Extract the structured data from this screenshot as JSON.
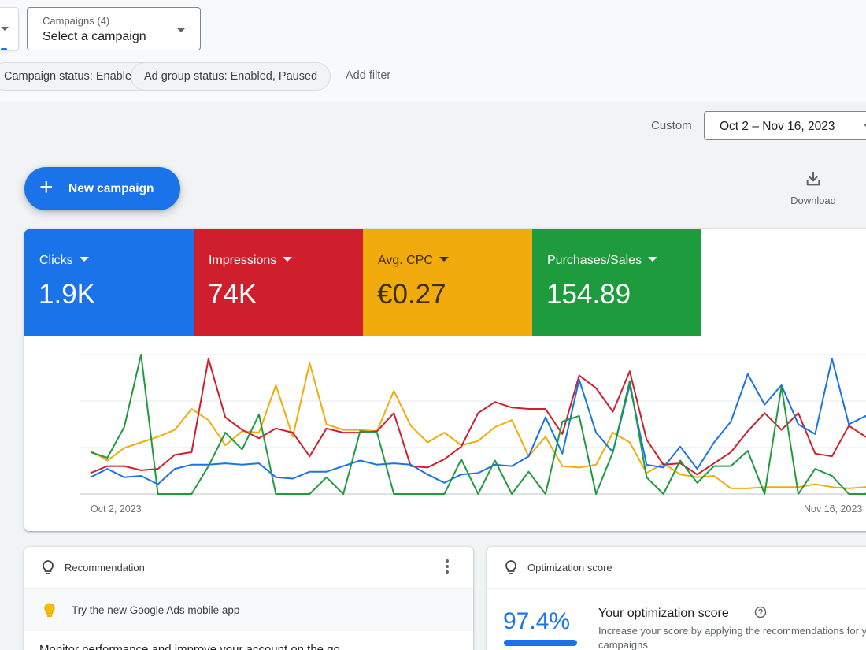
{
  "filters": {
    "campaign_select": {
      "label": "Campaigns (4)",
      "value": "Select a campaign"
    },
    "chips": [
      {
        "label": "Campaign status: Enabled, Paused"
      },
      {
        "label": "Ad group status: Enabled, Paused"
      }
    ],
    "add_filter": "Add filter"
  },
  "date_range": {
    "label": "Custom",
    "value": "Oct 2 – Nov 16, 2023"
  },
  "actions": {
    "new_campaign": "New campaign",
    "download": "Download"
  },
  "metrics": [
    {
      "label": "Clicks",
      "value": "1.9K",
      "color": "#1a73e8"
    },
    {
      "label": "Impressions",
      "value": "74K",
      "color": "#d01f2c"
    },
    {
      "label": "Avg. CPC",
      "value": "€0.27",
      "color": "#f2ab0c"
    },
    {
      "label": "Purchases/Sales",
      "value": "154.89",
      "color": "#1e9b3d"
    }
  ],
  "chart_data": {
    "type": "line",
    "x_start_label": "Oct 2, 2023",
    "x_end_label": "Nov 16, 2023",
    "gridlines": true,
    "normalized": true,
    "series": [
      {
        "name": "Clicks",
        "color": "#1a73e8",
        "values": [
          0.12,
          0.18,
          0.12,
          0.13,
          0.07,
          0.18,
          0.21,
          0.21,
          0.22,
          0.21,
          0.22,
          0.12,
          0.11,
          0.16,
          0.16,
          0.2,
          0.24,
          0.21,
          0.22,
          0.21,
          0.14,
          0.08,
          0.14,
          0.15,
          0.21,
          0.2,
          0.27,
          0.55,
          0.29,
          0.82,
          0.44,
          0.3,
          0.78,
          0.21,
          0.19,
          0.34,
          0.18,
          0.37,
          0.52,
          0.86,
          0.64,
          0.78,
          0.5,
          0.43,
          0.97,
          0.5,
          0.56,
          0.38
        ]
      },
      {
        "name": "Impressions",
        "color": "#d01f2c",
        "values": [
          0.15,
          0.2,
          0.2,
          0.17,
          0.18,
          0.28,
          0.3,
          0.97,
          0.55,
          0.46,
          0.4,
          0.47,
          0.44,
          0.27,
          0.47,
          0.44,
          0.44,
          0.45,
          0.58,
          0.2,
          0.19,
          0.25,
          0.34,
          0.58,
          0.66,
          0.62,
          0.61,
          0.61,
          0.43,
          0.85,
          0.76,
          0.59,
          0.88,
          0.39,
          0.21,
          0.22,
          0.14,
          0.22,
          0.3,
          0.45,
          0.58,
          0.46,
          0.58,
          0.29,
          0.27,
          0.49,
          0.41,
          0.36
        ]
      },
      {
        "name": "Avg. CPC",
        "color": "#f2ab0c",
        "values": [
          0.31,
          0.24,
          0.33,
          0.37,
          0.41,
          0.46,
          0.61,
          0.53,
          0.35,
          0.45,
          0.44,
          0.78,
          0.41,
          0.94,
          0.5,
          0.46,
          0.46,
          0.45,
          0.74,
          0.49,
          0.37,
          0.44,
          0.35,
          0.38,
          0.48,
          0.53,
          0.27,
          0.41,
          0.2,
          0.19,
          0.21,
          0.44,
          0.37,
          0.15,
          0.22,
          0.14,
          0.12,
          0.13,
          0.04,
          0.04,
          0.05,
          0.05,
          0.05,
          0.07,
          0.05,
          0.04,
          0.05,
          0.05
        ]
      },
      {
        "name": "Purchases/Sales",
        "color": "#1e9b3d",
        "values": [
          0.3,
          0.26,
          0.48,
          1.0,
          0.0,
          0.0,
          0.0,
          0.2,
          0.44,
          0.32,
          0.57,
          0.0,
          0.0,
          0.0,
          0.12,
          0.0,
          0.45,
          0.44,
          0.0,
          0.0,
          0.0,
          0.0,
          0.25,
          0.0,
          0.24,
          0.0,
          0.16,
          0.0,
          0.52,
          0.56,
          0.0,
          0.3,
          0.81,
          0.12,
          0.0,
          0.24,
          0.08,
          0.2,
          0.2,
          0.31,
          0.0,
          0.77,
          0.0,
          0.18,
          0.13,
          0.0,
          0.0,
          0.15
        ]
      }
    ]
  },
  "recommendation": {
    "title": "Recommendation",
    "tip": "Try the new Google Ads mobile app",
    "description": "Monitor performance and improve your account on the go"
  },
  "optimization": {
    "title": "Optimization score",
    "score": "97.4%",
    "score_value": 0.974,
    "heading": "Your optimization score",
    "description": "Increase your score by applying the recommendations for your campaigns"
  }
}
